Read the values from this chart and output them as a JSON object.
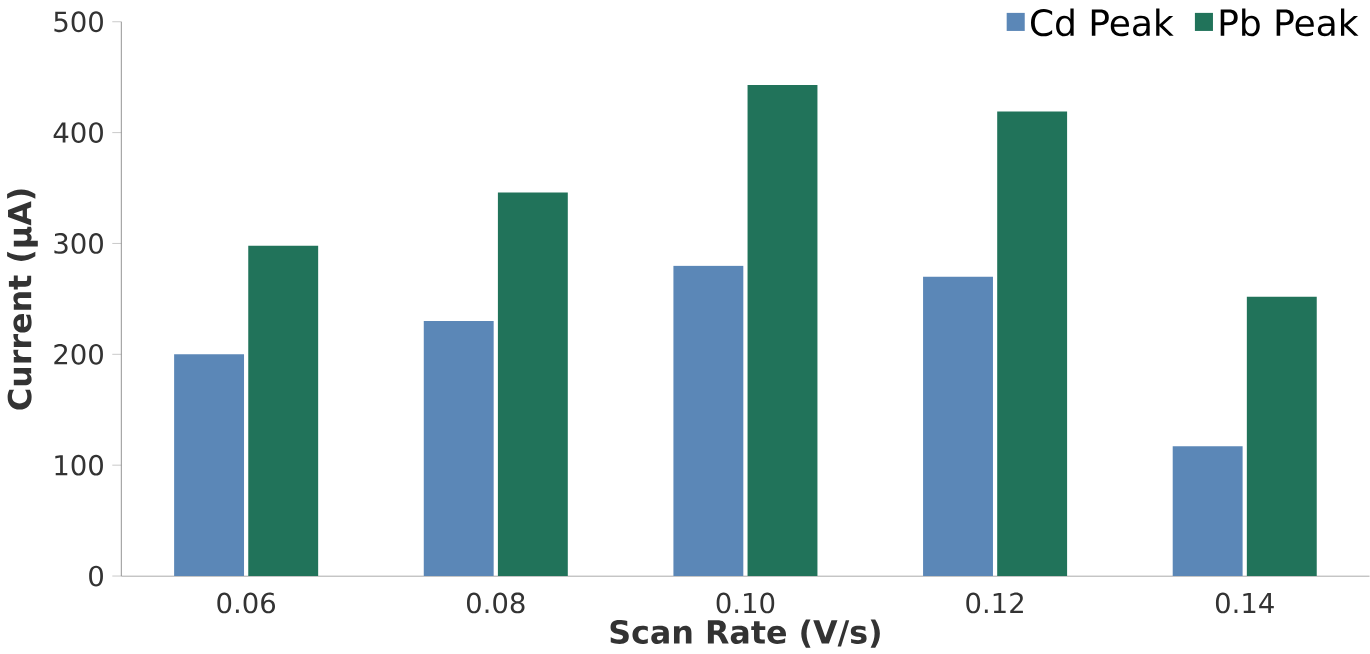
{
  "chart_data": {
    "type": "bar",
    "xlabel": "Scan Rate (V/s)",
    "ylabel": "Current (µA)",
    "categories": [
      "0.06",
      "0.08",
      "0.10",
      "0.12",
      "0.14"
    ],
    "series": [
      {
        "name": "Cd Peak",
        "color": "#5b87b7",
        "values": [
          200,
          230,
          280,
          270,
          117
        ]
      },
      {
        "name": "Pb Peak",
        "color": "#21735a",
        "values": [
          298,
          346,
          443,
          419,
          252
        ]
      }
    ],
    "ylim": [
      0,
      500
    ],
    "yticks": [
      0,
      100,
      200,
      300,
      400,
      500
    ],
    "legend": "top right",
    "grid": false
  }
}
